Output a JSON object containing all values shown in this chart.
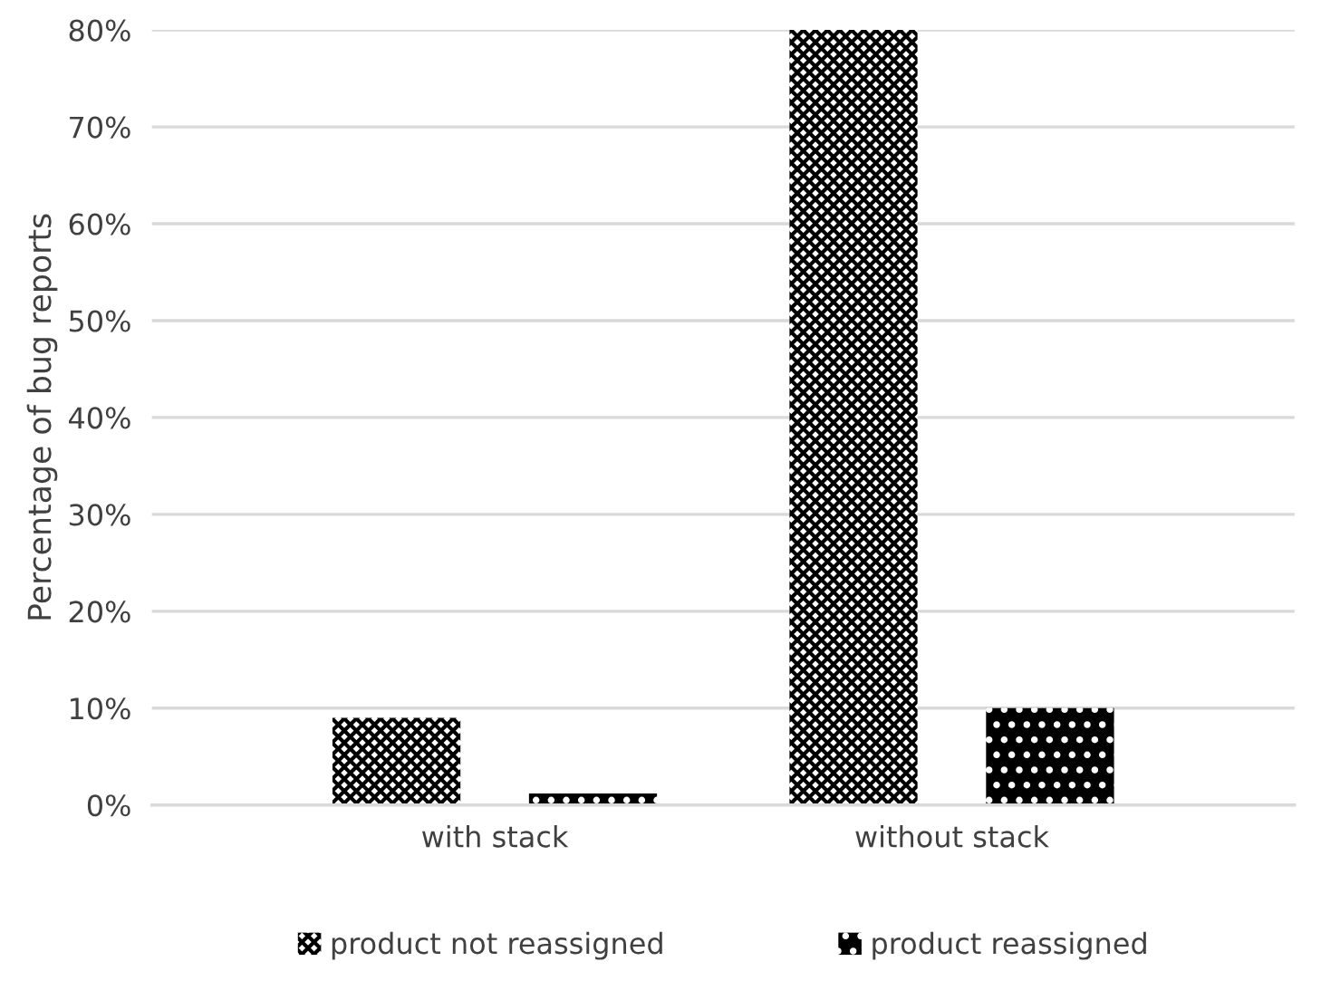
{
  "chart_data": {
    "type": "bar",
    "ylabel": "Percentage of bug reports",
    "categories": [
      "with stack",
      "without stack"
    ],
    "series": [
      {
        "name": "product not reassigned",
        "color": "#000000",
        "values": [
          9,
          80
        ]
      },
      {
        "name": "product reassigned",
        "color": "#000000",
        "values": [
          1.2,
          10
        ]
      }
    ],
    "ylim": [
      0,
      80
    ],
    "yticks": [
      {
        "value": 0,
        "label": "0%"
      },
      {
        "value": 10,
        "label": "10%"
      },
      {
        "value": 20,
        "label": "20%"
      },
      {
        "value": 30,
        "label": "30%"
      },
      {
        "value": 40,
        "label": "40%"
      },
      {
        "value": 50,
        "label": "50%"
      },
      {
        "value": 60,
        "label": "60%"
      },
      {
        "value": 70,
        "label": "70%"
      },
      {
        "value": 80,
        "label": "80%"
      }
    ],
    "grid": "y",
    "legend": "bottom"
  }
}
